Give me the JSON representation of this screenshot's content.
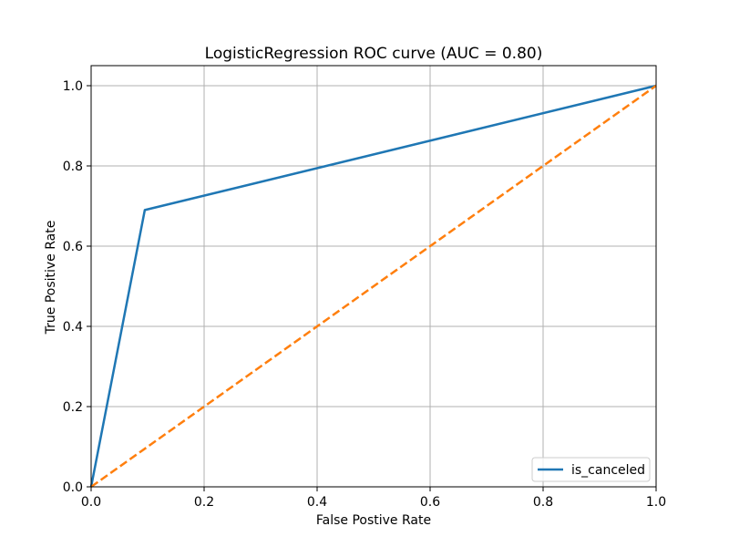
{
  "chart_data": {
    "type": "line",
    "title": "LogisticRegression ROC curve (AUC = 0.80)",
    "xlabel": "False Postive Rate",
    "ylabel": "True Positive Rate",
    "xlim": [
      0.0,
      1.0
    ],
    "ylim": [
      0.0,
      1.05
    ],
    "xticks": [
      "0.0",
      "0.2",
      "0.4",
      "0.6",
      "0.8",
      "1.0"
    ],
    "yticks": [
      "0.0",
      "0.2",
      "0.4",
      "0.6",
      "0.8",
      "1.0"
    ],
    "grid": true,
    "legend_position": "lower-right",
    "series": [
      {
        "name": "is_canceled",
        "color": "#1f77b4",
        "style": "solid",
        "x": [
          0.0,
          0.095,
          1.0
        ],
        "y": [
          0.0,
          0.69,
          1.0
        ]
      },
      {
        "color": "#ff7f0e",
        "style": "dashed",
        "x": [
          0.0,
          1.0
        ],
        "y": [
          0.0,
          1.0
        ]
      }
    ]
  }
}
